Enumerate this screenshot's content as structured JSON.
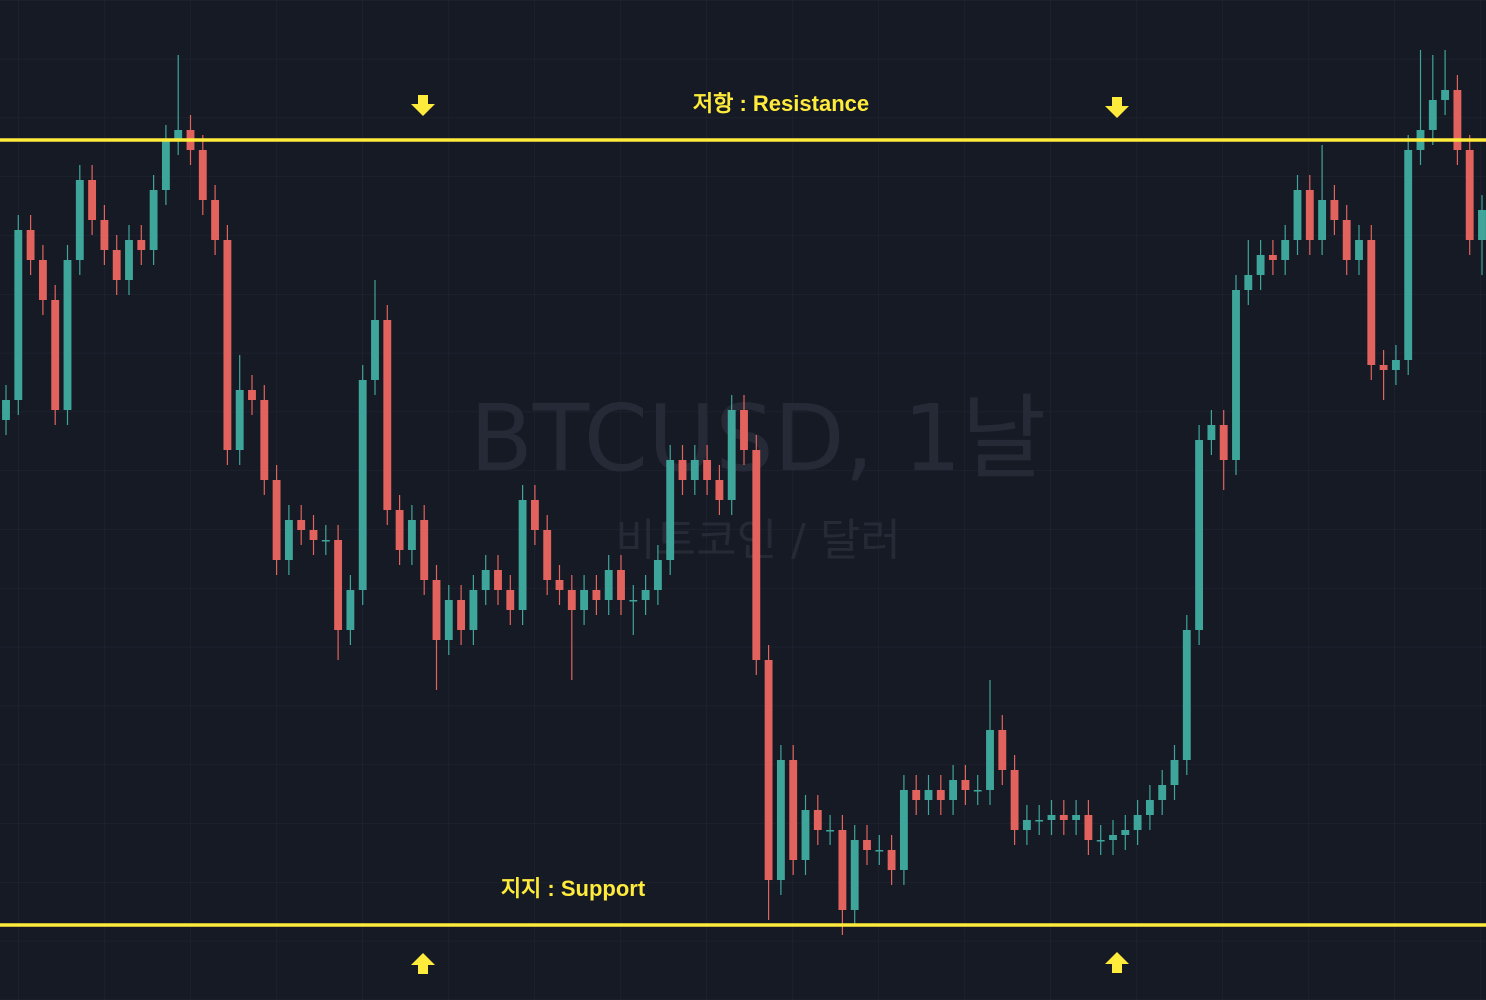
{
  "chart_data": {
    "type": "candlestick",
    "watermark": "BTCUSD, 1날",
    "watermark_subtitle": "비트코인 / 달러",
    "ylim": [
      0,
      1000
    ],
    "up_color": "#3ea59a",
    "down_color": "#e2625d",
    "levels": [
      {
        "label": "저항 : Resistance",
        "value": 860,
        "color": "#ffeb3b"
      },
      {
        "label": "지지 : Support",
        "value": 75,
        "color": "#ffeb3b"
      }
    ],
    "open": [
      580,
      600,
      770,
      740,
      700,
      590,
      740,
      820,
      780,
      750,
      720,
      760,
      750,
      810,
      860,
      870,
      850,
      800,
      760,
      550,
      610,
      600,
      520,
      440,
      480,
      470,
      460,
      460,
      370,
      410,
      620,
      680,
      490,
      450,
      480,
      420,
      360,
      400,
      370,
      410,
      430,
      410,
      390,
      500,
      470,
      420,
      410,
      390,
      410,
      400,
      430,
      400,
      400,
      410,
      440,
      540,
      520,
      540,
      520,
      500,
      590,
      550,
      340,
      120,
      240,
      140,
      190,
      170,
      170,
      90,
      160,
      150,
      150,
      130,
      210,
      200,
      210,
      200,
      220,
      210,
      210,
      270,
      230,
      170,
      180,
      180,
      185,
      180,
      185,
      160,
      160,
      165,
      170,
      185,
      200,
      215,
      240,
      370,
      560,
      575,
      540,
      710,
      725,
      745,
      740,
      760,
      810,
      760,
      800,
      780,
      740,
      760,
      635,
      630,
      640,
      850,
      870,
      900,
      910,
      850,
      760
    ],
    "high": [
      615,
      785,
      785,
      755,
      715,
      755,
      835,
      835,
      795,
      765,
      775,
      775,
      825,
      875,
      945,
      885,
      865,
      815,
      775,
      645,
      625,
      615,
      535,
      495,
      495,
      485,
      475,
      475,
      425,
      635,
      720,
      695,
      505,
      495,
      495,
      435,
      415,
      415,
      425,
      445,
      445,
      425,
      515,
      515,
      485,
      435,
      425,
      425,
      425,
      445,
      445,
      415,
      425,
      455,
      555,
      555,
      555,
      555,
      535,
      605,
      605,
      565,
      355,
      255,
      255,
      205,
      205,
      185,
      185,
      175,
      175,
      165,
      165,
      225,
      225,
      225,
      225,
      235,
      235,
      225,
      320,
      285,
      245,
      195,
      195,
      200,
      200,
      200,
      200,
      175,
      180,
      185,
      200,
      215,
      230,
      255,
      385,
      575,
      590,
      590,
      725,
      760,
      760,
      760,
      775,
      825,
      825,
      855,
      815,
      795,
      775,
      775,
      650,
      655,
      865,
      950,
      945,
      950,
      925,
      865,
      805
    ],
    "low": [
      565,
      585,
      725,
      685,
      575,
      575,
      725,
      765,
      735,
      705,
      705,
      735,
      735,
      795,
      845,
      835,
      785,
      745,
      535,
      535,
      585,
      505,
      425,
      425,
      455,
      445,
      445,
      340,
      355,
      395,
      605,
      475,
      435,
      435,
      405,
      310,
      345,
      355,
      355,
      395,
      395,
      375,
      375,
      455,
      405,
      395,
      320,
      375,
      385,
      385,
      385,
      365,
      385,
      395,
      425,
      505,
      505,
      505,
      485,
      485,
      535,
      325,
      80,
      105,
      125,
      125,
      155,
      155,
      65,
      75,
      135,
      135,
      115,
      115,
      185,
      185,
      185,
      185,
      195,
      195,
      195,
      215,
      155,
      155,
      165,
      165,
      165,
      165,
      145,
      145,
      145,
      150,
      155,
      170,
      185,
      200,
      225,
      355,
      545,
      510,
      525,
      695,
      710,
      725,
      725,
      745,
      745,
      745,
      765,
      725,
      725,
      620,
      600,
      615,
      625,
      835,
      855,
      885,
      835,
      745,
      725
    ],
    "close": [
      600,
      770,
      740,
      700,
      590,
      740,
      820,
      780,
      750,
      720,
      760,
      750,
      810,
      860,
      870,
      850,
      800,
      760,
      550,
      610,
      600,
      520,
      440,
      480,
      470,
      460,
      460,
      370,
      410,
      620,
      680,
      490,
      450,
      480,
      420,
      360,
      400,
      370,
      410,
      430,
      410,
      390,
      500,
      470,
      420,
      410,
      390,
      410,
      400,
      430,
      400,
      400,
      410,
      440,
      540,
      520,
      540,
      520,
      500,
      590,
      550,
      340,
      120,
      240,
      140,
      190,
      170,
      170,
      90,
      160,
      150,
      150,
      130,
      210,
      200,
      210,
      200,
      220,
      210,
      210,
      270,
      230,
      170,
      180,
      180,
      185,
      180,
      185,
      160,
      160,
      165,
      170,
      185,
      200,
      215,
      240,
      370,
      560,
      575,
      540,
      710,
      725,
      745,
      740,
      760,
      810,
      760,
      800,
      780,
      740,
      760,
      635,
      630,
      640,
      850,
      870,
      900,
      910,
      850,
      760,
      790
    ]
  }
}
